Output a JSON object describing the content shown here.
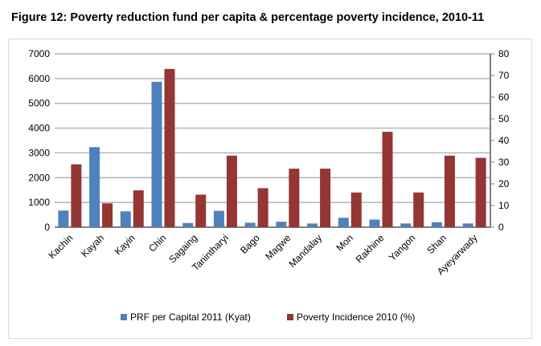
{
  "title": "Figure 12: Poverty reduction fund per capita & percentage poverty incidence, 2010-11",
  "chart_data": {
    "type": "bar",
    "title": "Figure 12: Poverty reduction fund per capita & percentage poverty incidence, 2010-11",
    "categories": [
      "Kachin",
      "Kayah",
      "Kayin",
      "Chin",
      "Sagaing",
      "Tanintharyi",
      "Bago",
      "Magwe",
      "Mandalay",
      "Mon",
      "Rakhine",
      "Yangon",
      "Shan",
      "Ayeyarwady"
    ],
    "series": [
      {
        "name": "PRF per Capital 2011 (Kyat)",
        "axis": "left",
        "color": "#4f81bd",
        "values": [
          670,
          3230,
          640,
          5870,
          170,
          660,
          180,
          220,
          150,
          380,
          310,
          150,
          200,
          150
        ]
      },
      {
        "name": "Poverty Incidence 2010 (%)",
        "axis": "right",
        "color": "#943634",
        "values": [
          29,
          11,
          17,
          73,
          15,
          33,
          18,
          27,
          27,
          16,
          44,
          16,
          33,
          32
        ]
      }
    ],
    "ylim_left": [
      0,
      7000
    ],
    "yticks_left": [
      0,
      1000,
      2000,
      3000,
      4000,
      5000,
      6000,
      7000
    ],
    "ylim_right": [
      0,
      80
    ],
    "yticks_right": [
      0,
      10,
      20,
      30,
      40,
      50,
      60,
      70,
      80
    ],
    "grid": true,
    "legend": "bottom"
  }
}
